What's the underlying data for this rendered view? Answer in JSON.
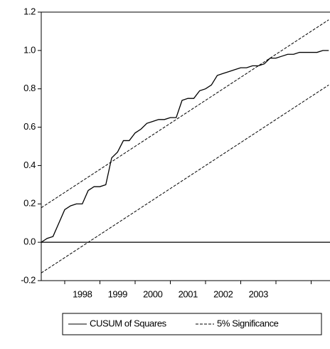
{
  "chart_data": {
    "type": "line",
    "categories": [
      null,
      null,
      null,
      null,
      null,
      null,
      null,
      "1998",
      null,
      null,
      null,
      null,
      null,
      "1999",
      null,
      null,
      null,
      null,
      null,
      "2000",
      null,
      null,
      null,
      null,
      null,
      "2001",
      null,
      null,
      null,
      null,
      null,
      "2002",
      null,
      null,
      null,
      null,
      null,
      "2003",
      null,
      null,
      null,
      null,
      null,
      null,
      null,
      null,
      null,
      null,
      null,
      null
    ],
    "series": [
      {
        "name": "CUSUM of Squares",
        "color": "#000000",
        "dash": false,
        "values": [
          0.0,
          0.02,
          0.03,
          0.1,
          0.17,
          0.19,
          0.2,
          0.2,
          0.27,
          0.29,
          0.29,
          0.3,
          0.44,
          0.47,
          0.53,
          0.53,
          0.57,
          0.59,
          0.62,
          0.63,
          0.64,
          0.64,
          0.65,
          0.65,
          0.74,
          0.75,
          0.75,
          0.79,
          0.8,
          0.82,
          0.87,
          0.88,
          0.89,
          0.9,
          0.91,
          0.91,
          0.92,
          0.92,
          0.93,
          0.96,
          0.96,
          0.97,
          0.98,
          0.98,
          0.99,
          0.99,
          0.99,
          0.99,
          1.0,
          1.0
        ]
      },
      {
        "name": "5% Significance",
        "color": "#000000",
        "dash": true,
        "values": [
          0.18,
          0.2,
          0.22,
          0.24,
          0.26,
          0.28,
          0.3,
          0.32,
          0.34,
          0.36,
          0.38,
          0.4,
          0.42,
          0.44,
          0.46,
          0.48,
          0.5,
          0.52,
          0.54,
          0.56,
          0.58,
          0.6,
          0.62,
          0.64,
          0.66,
          0.68,
          0.7,
          0.72,
          0.74,
          0.76,
          0.78,
          0.8,
          0.82,
          0.84,
          0.86,
          0.88,
          0.9,
          0.92,
          0.94,
          0.96,
          0.98,
          1.0,
          1.02,
          1.04,
          1.06,
          1.08,
          1.1,
          1.12,
          1.14,
          1.16
        ],
        "lower_values": [
          -0.16,
          -0.14,
          -0.12,
          -0.1,
          -0.08,
          -0.06,
          -0.04,
          -0.02,
          0.0,
          0.02,
          0.04,
          0.06,
          0.08,
          0.1,
          0.12,
          0.14,
          0.16,
          0.18,
          0.2,
          0.22,
          0.24,
          0.26,
          0.28,
          0.3,
          0.32,
          0.34,
          0.36,
          0.38,
          0.4,
          0.42,
          0.44,
          0.46,
          0.48,
          0.5,
          0.52,
          0.54,
          0.56,
          0.58,
          0.6,
          0.62,
          0.64,
          0.66,
          0.68,
          0.7,
          0.72,
          0.74,
          0.76,
          0.78,
          0.8,
          0.82
        ]
      }
    ],
    "ylim": [
      -0.2,
      1.2
    ],
    "yticks": [
      -0.2,
      {
        "value": 0.0,
        "label": "0.0"
      },
      0.2,
      0.4,
      0.6,
      0.8,
      {
        "value": 1.0,
        "label": "1.0"
      },
      1.2
    ],
    "reference_line": 0,
    "grid": false
  }
}
